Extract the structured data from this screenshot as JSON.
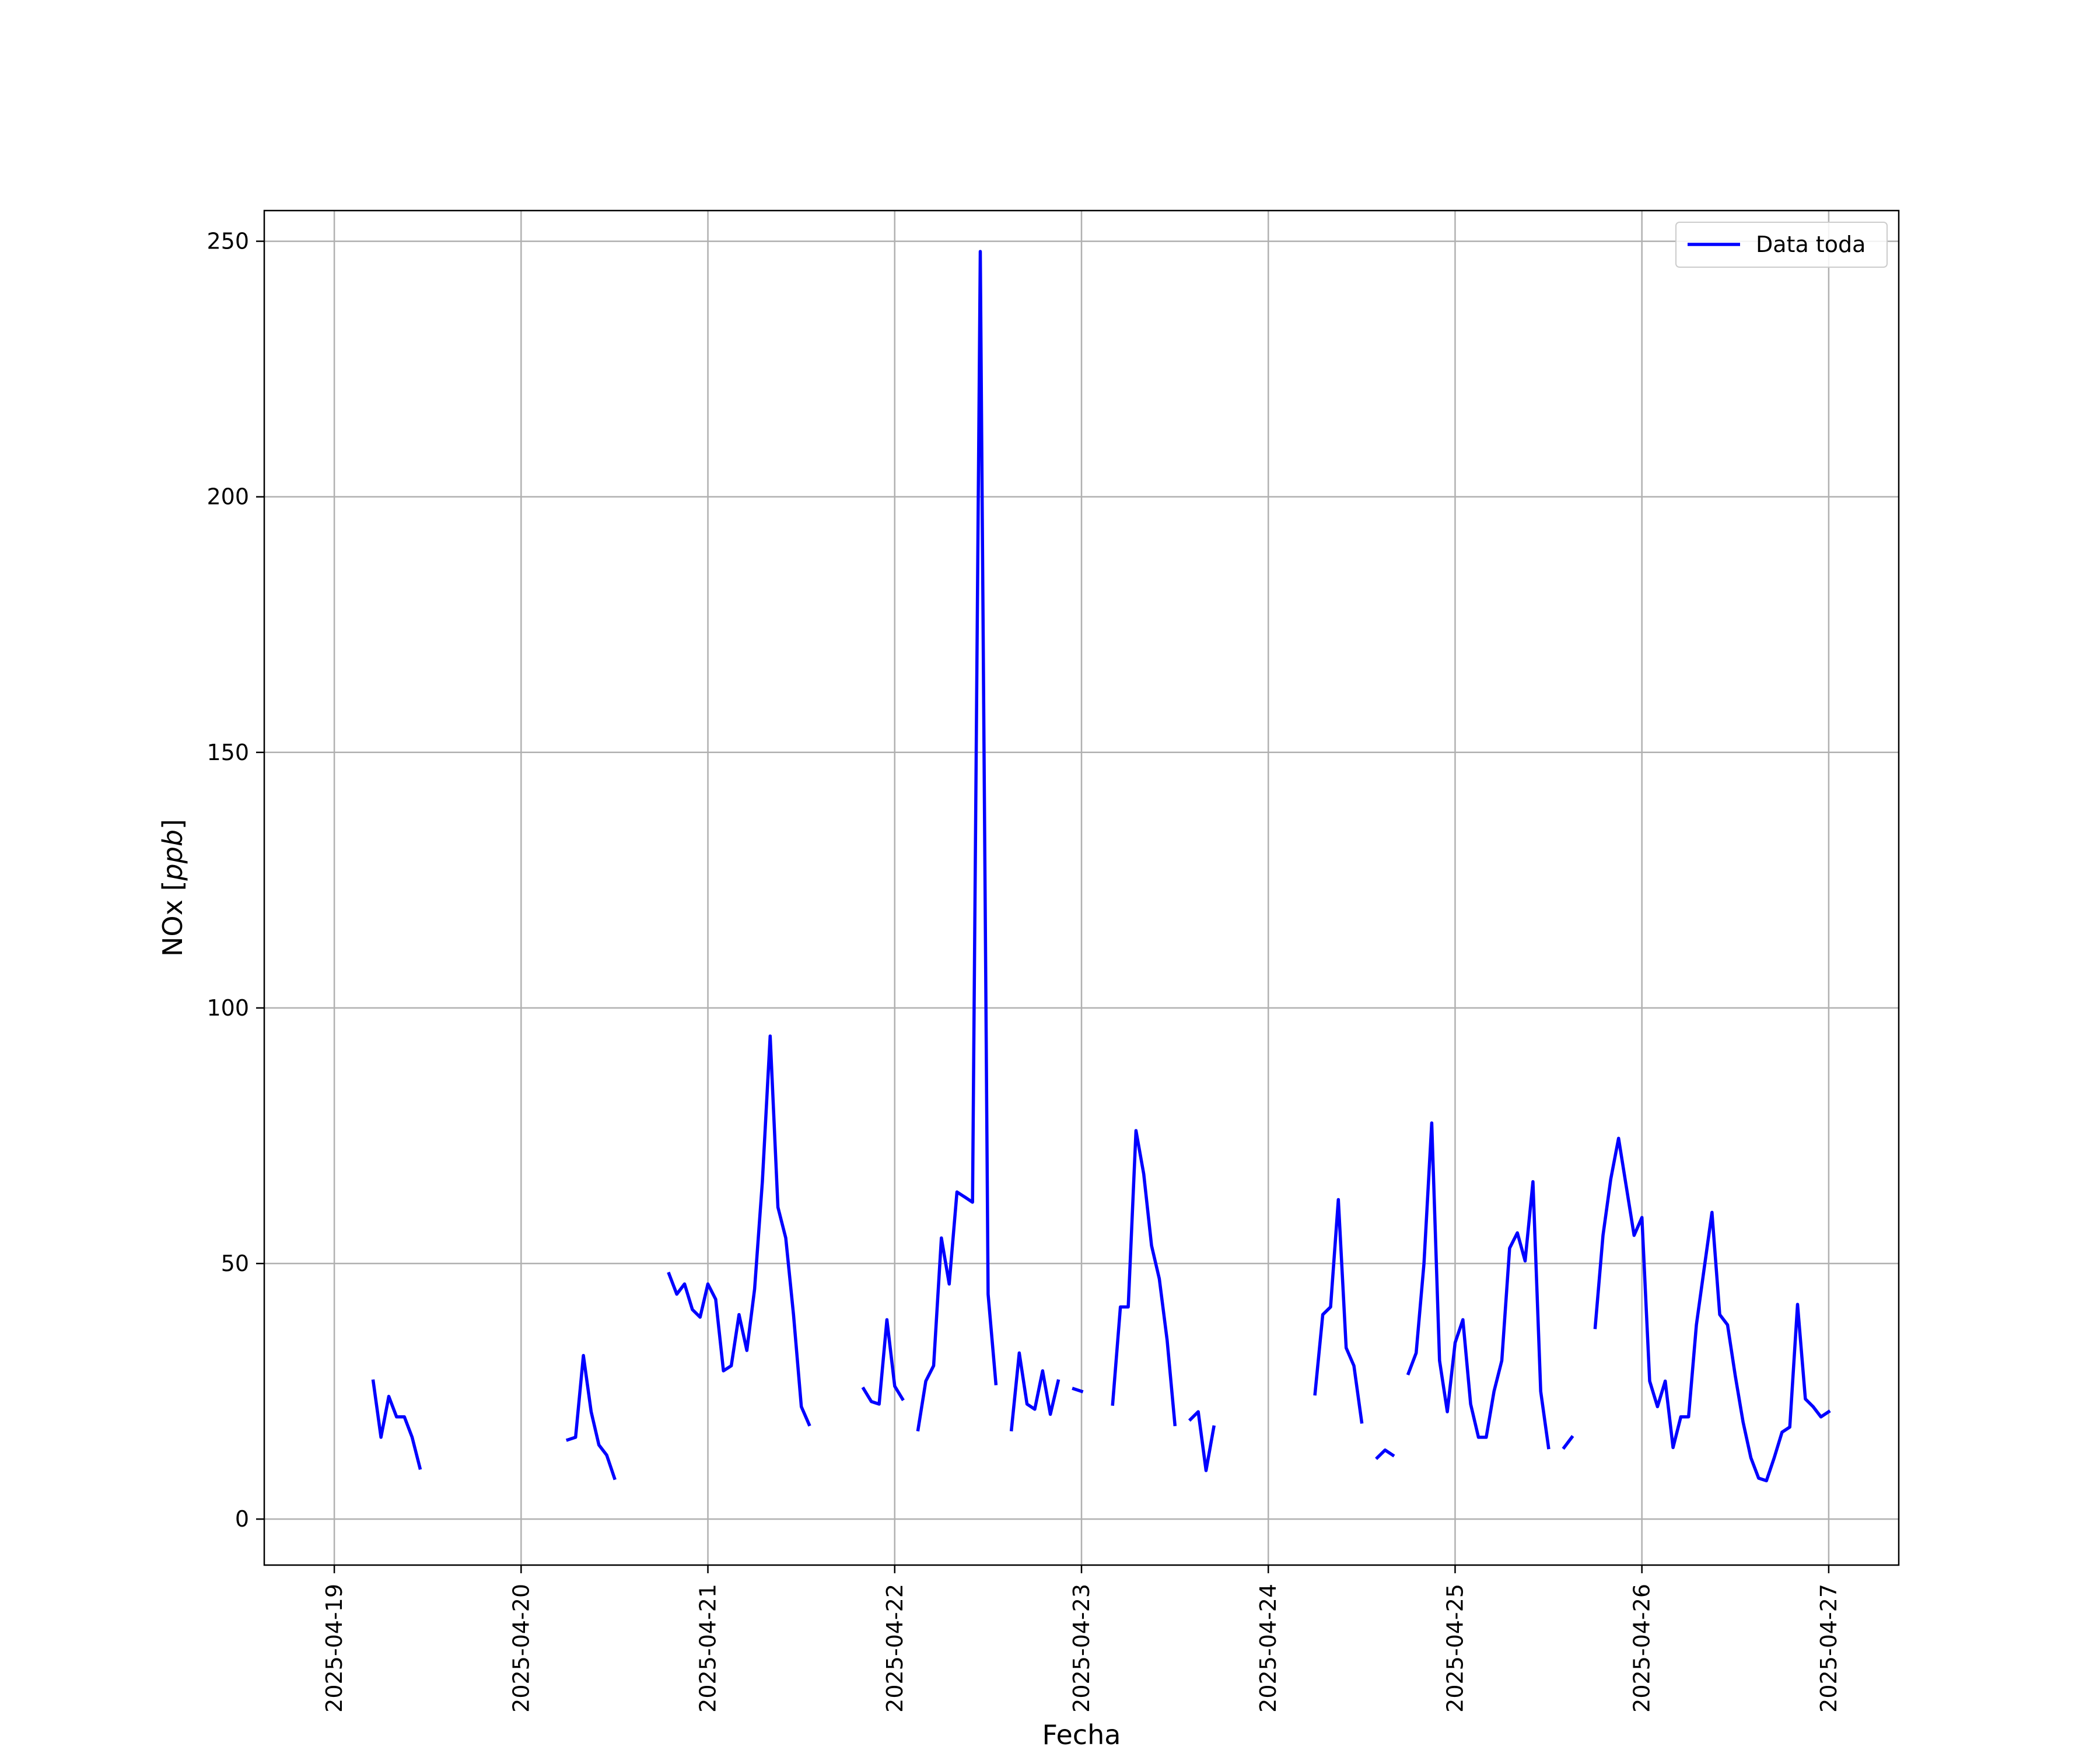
{
  "chart_data": {
    "type": "line",
    "xlabel": "Fecha",
    "ylabel_main": "NOx [",
    "ylabel_unit": "ppb",
    "ylabel_end": "]",
    "xlim": [
      "2025-04-18 15:00",
      "2025-04-27 09:00"
    ],
    "ylim": [
      -9,
      256
    ],
    "x_ticks": [
      "2025-04-19",
      "2025-04-20",
      "2025-04-21",
      "2025-04-22",
      "2025-04-23",
      "2025-04-24",
      "2025-04-25",
      "2025-04-26",
      "2025-04-27"
    ],
    "y_ticks": [
      "0",
      "50",
      "100",
      "150",
      "200",
      "250"
    ],
    "grid": true,
    "legend": {
      "position": "top-right",
      "entries": [
        "Data toda"
      ]
    },
    "colors": {
      "series": "#0000ff",
      "grid": "#b0b0b0",
      "axis": "#000000"
    },
    "series": [
      {
        "name": "Data toda",
        "segments": [
          [
            [
              "2025-04-19 05:00",
              27
            ],
            [
              "2025-04-19 06:00",
              16
            ],
            [
              "2025-04-19 07:00",
              24
            ],
            [
              "2025-04-19 08:00",
              20
            ],
            [
              "2025-04-19 09:00",
              20
            ],
            [
              "2025-04-19 10:00",
              16
            ],
            [
              "2025-04-19 11:00",
              10
            ]
          ],
          [
            [
              "2025-04-20 06:00",
              15.5
            ],
            [
              "2025-04-20 07:00",
              16
            ],
            [
              "2025-04-20 08:00",
              32
            ],
            [
              "2025-04-20 09:00",
              21
            ],
            [
              "2025-04-20 10:00",
              14.5
            ],
            [
              "2025-04-20 11:00",
              12.5
            ],
            [
              "2025-04-20 12:00",
              8
            ]
          ],
          [
            [
              "2025-04-20 19:00",
              48
            ],
            [
              "2025-04-20 20:00",
              44
            ],
            [
              "2025-04-20 21:00",
              46
            ],
            [
              "2025-04-20 22:00",
              41
            ],
            [
              "2025-04-20 23:00",
              39.5
            ],
            [
              "2025-04-21 00:00",
              46
            ],
            [
              "2025-04-21 01:00",
              43
            ],
            [
              "2025-04-21 02:00",
              29
            ],
            [
              "2025-04-21 03:00",
              30
            ],
            [
              "2025-04-21 04:00",
              40
            ],
            [
              "2025-04-21 05:00",
              33
            ],
            [
              "2025-04-21 06:00",
              45
            ],
            [
              "2025-04-21 07:00",
              66
            ],
            [
              "2025-04-21 08:00",
              94.5
            ],
            [
              "2025-04-21 09:00",
              61
            ],
            [
              "2025-04-21 10:00",
              55
            ],
            [
              "2025-04-21 11:00",
              40
            ],
            [
              "2025-04-21 12:00",
              22
            ],
            [
              "2025-04-21 13:00",
              18.5
            ]
          ],
          [
            [
              "2025-04-21 20:00",
              25.5
            ],
            [
              "2025-04-21 21:00",
              23
            ],
            [
              "2025-04-21 22:00",
              22.5
            ],
            [
              "2025-04-21 23:00",
              39
            ],
            [
              "2025-04-22 00:00",
              26
            ],
            [
              "2025-04-22 01:00",
              23.5
            ]
          ],
          [
            [
              "2025-04-22 03:00",
              17.5
            ],
            [
              "2025-04-22 04:00",
              27
            ],
            [
              "2025-04-22 05:00",
              30
            ],
            [
              "2025-04-22 06:00",
              55
            ],
            [
              "2025-04-22 07:00",
              46
            ],
            [
              "2025-04-22 08:00",
              64
            ],
            [
              "2025-04-22 09:00",
              63
            ],
            [
              "2025-04-22 10:00",
              62
            ],
            [
              "2025-04-22 11:00",
              248
            ],
            [
              "2025-04-22 12:00",
              44
            ],
            [
              "2025-04-22 13:00",
              26.5
            ]
          ],
          [
            [
              "2025-04-22 15:00",
              17.5
            ],
            [
              "2025-04-22 16:00",
              32.5
            ],
            [
              "2025-04-22 17:00",
              22.5
            ],
            [
              "2025-04-22 18:00",
              21.5
            ],
            [
              "2025-04-22 19:00",
              29
            ],
            [
              "2025-04-22 20:00",
              20.5
            ],
            [
              "2025-04-22 21:00",
              27
            ]
          ],
          [
            [
              "2025-04-22 23:00",
              25.5
            ],
            [
              "2025-04-23 00:00",
              25
            ]
          ],
          [
            [
              "2025-04-23 04:00",
              22.5
            ],
            [
              "2025-04-23 05:00",
              41.5
            ],
            [
              "2025-04-23 06:00",
              41.5
            ],
            [
              "2025-04-23 07:00",
              76
            ],
            [
              "2025-04-23 08:00",
              67.5
            ],
            [
              "2025-04-23 09:00",
              53.5
            ],
            [
              "2025-04-23 10:00",
              47
            ],
            [
              "2025-04-23 11:00",
              35
            ],
            [
              "2025-04-23 12:00",
              18.5
            ]
          ],
          [
            [
              "2025-04-23 14:00",
              19.5
            ],
            [
              "2025-04-23 15:00",
              21
            ],
            [
              "2025-04-23 16:00",
              9.5
            ],
            [
              "2025-04-23 17:00",
              18
            ]
          ],
          [
            [
              "2025-04-24 06:00",
              24.5
            ],
            [
              "2025-04-24 07:00",
              40
            ],
            [
              "2025-04-24 08:00",
              41.5
            ],
            [
              "2025-04-24 09:00",
              62.5
            ],
            [
              "2025-04-24 10:00",
              33.5
            ],
            [
              "2025-04-24 11:00",
              30
            ],
            [
              "2025-04-24 12:00",
              19
            ]
          ],
          [
            [
              "2025-04-24 14:00",
              12
            ],
            [
              "2025-04-24 15:00",
              13.5
            ],
            [
              "2025-04-24 16:00",
              12.5
            ]
          ],
          [
            [
              "2025-04-24 18:00",
              28.5
            ],
            [
              "2025-04-24 19:00",
              32.5
            ],
            [
              "2025-04-24 20:00",
              50
            ],
            [
              "2025-04-24 21:00",
              77.5
            ],
            [
              "2025-04-24 22:00",
              31
            ],
            [
              "2025-04-24 23:00",
              21
            ],
            [
              "2025-04-25 00:00",
              34.5
            ],
            [
              "2025-04-25 01:00",
              39
            ],
            [
              "2025-04-25 02:00",
              22.5
            ],
            [
              "2025-04-25 03:00",
              16
            ],
            [
              "2025-04-25 04:00",
              16
            ],
            [
              "2025-04-25 05:00",
              25
            ],
            [
              "2025-04-25 06:00",
              31
            ],
            [
              "2025-04-25 07:00",
              53
            ],
            [
              "2025-04-25 08:00",
              56
            ],
            [
              "2025-04-25 09:00",
              50.5
            ],
            [
              "2025-04-25 10:00",
              66
            ],
            [
              "2025-04-25 11:00",
              25
            ],
            [
              "2025-04-25 12:00",
              14
            ]
          ],
          [
            [
              "2025-04-25 14:00",
              14
            ],
            [
              "2025-04-25 15:00",
              16
            ]
          ],
          [
            [
              "2025-04-25 18:00",
              37.5
            ],
            [
              "2025-04-25 19:00",
              55.5
            ],
            [
              "2025-04-25 20:00",
              66.5
            ],
            [
              "2025-04-25 21:00",
              74.5
            ],
            [
              "2025-04-25 22:00",
              65
            ],
            [
              "2025-04-25 23:00",
              55.5
            ],
            [
              "2025-04-26 00:00",
              59
            ],
            [
              "2025-04-26 01:00",
              27
            ],
            [
              "2025-04-26 02:00",
              22
            ],
            [
              "2025-04-26 03:00",
              27
            ],
            [
              "2025-04-26 04:00",
              14
            ],
            [
              "2025-04-26 05:00",
              20
            ],
            [
              "2025-04-26 06:00",
              20
            ],
            [
              "2025-04-26 07:00",
              38
            ],
            [
              "2025-04-26 08:00",
              49
            ],
            [
              "2025-04-26 09:00",
              60
            ],
            [
              "2025-04-26 10:00",
              40
            ],
            [
              "2025-04-26 11:00",
              38
            ],
            [
              "2025-04-26 12:00",
              28
            ],
            [
              "2025-04-26 13:00",
              19
            ],
            [
              "2025-04-26 14:00",
              12
            ],
            [
              "2025-04-26 15:00",
              8
            ],
            [
              "2025-04-26 16:00",
              7.5
            ],
            [
              "2025-04-26 17:00",
              12
            ],
            [
              "2025-04-26 18:00",
              17
            ],
            [
              "2025-04-26 19:00",
              18
            ],
            [
              "2025-04-26 20:00",
              42
            ],
            [
              "2025-04-26 21:00",
              23.5
            ],
            [
              "2025-04-26 22:00",
              22
            ],
            [
              "2025-04-26 23:00",
              20
            ],
            [
              "2025-04-27 00:00",
              21
            ]
          ]
        ]
      }
    ]
  }
}
